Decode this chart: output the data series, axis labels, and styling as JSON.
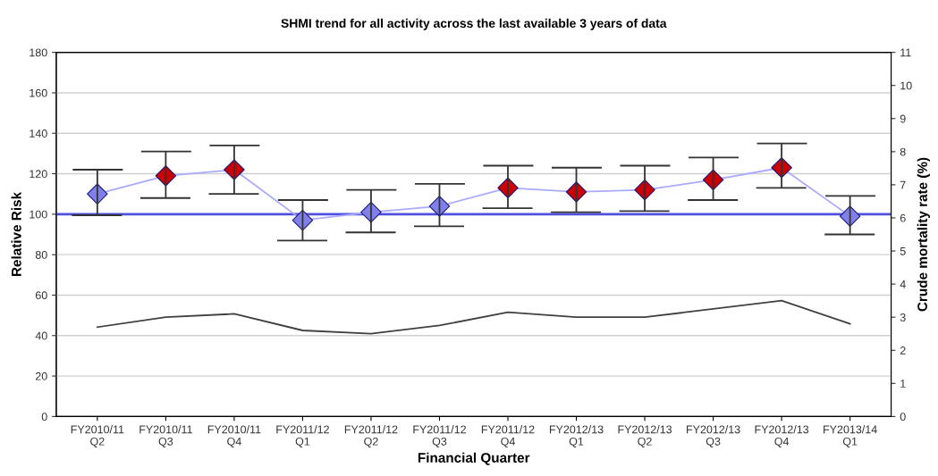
{
  "chart_data": {
    "type": "line",
    "title": "SHMI trend for all activity across the last available 3 years of data",
    "xlabel": "Financial Quarter",
    "ylabel": "Relative Risk",
    "y2label": "Crude mortality rate (%)",
    "categories": [
      "FY2010/11\nQ2",
      "FY2010/11\nQ3",
      "FY2010/11\nQ4",
      "FY2011/12\nQ1",
      "FY2011/12\nQ2",
      "FY2011/12\nQ3",
      "FY2011/12\nQ4",
      "FY2012/13\nQ1",
      "FY2012/13\nQ2",
      "FY2012/13\nQ3",
      "FY2012/13\nQ4",
      "FY2013/14\nQ1"
    ],
    "series": [
      {
        "color": "#aaaaff",
        "marker": "diamond",
        "colors": [
          "#8080e8",
          "#cc0000",
          "#cc0000",
          "#8080e8",
          "#8080e8",
          "#8080e8",
          "#cc0000",
          "#cc0000",
          "#cc0000",
          "#cc0000",
          "#cc0000",
          "#8080e8"
        ],
        "values": [
          110,
          119,
          122,
          97,
          101,
          104,
          113,
          111,
          112,
          117,
          123,
          99
        ],
        "errors": [
          [
            99.5,
            122
          ],
          [
            108,
            131
          ],
          [
            110,
            134
          ],
          [
            87,
            107
          ],
          [
            91,
            112
          ],
          [
            94,
            115
          ],
          [
            103,
            124
          ],
          [
            101,
            123
          ],
          [
            101.5,
            124
          ],
          [
            107,
            128
          ],
          [
            113,
            135
          ],
          [
            90,
            109
          ]
        ]
      },
      {
        "axis": "y2",
        "color": "#404040",
        "marker": "none",
        "values": [
          2.7,
          3.0,
          3.1,
          2.6,
          2.5,
          2.75,
          3.15,
          3.0,
          3.0,
          3.25,
          3.5,
          2.8
        ]
      }
    ],
    "ref_lines": [
      {
        "axis": "y",
        "value": 100,
        "color": "#5050e0"
      }
    ],
    "ylim": [
      0,
      180
    ],
    "yticks": [
      0,
      20,
      40,
      60,
      80,
      100,
      120,
      140,
      160,
      180
    ],
    "y2lim": [
      0,
      11
    ],
    "y2ticks": [
      0,
      1,
      2,
      3,
      4,
      5,
      6,
      7,
      8,
      9,
      10,
      11
    ],
    "grid": "y",
    "legend": false
  }
}
